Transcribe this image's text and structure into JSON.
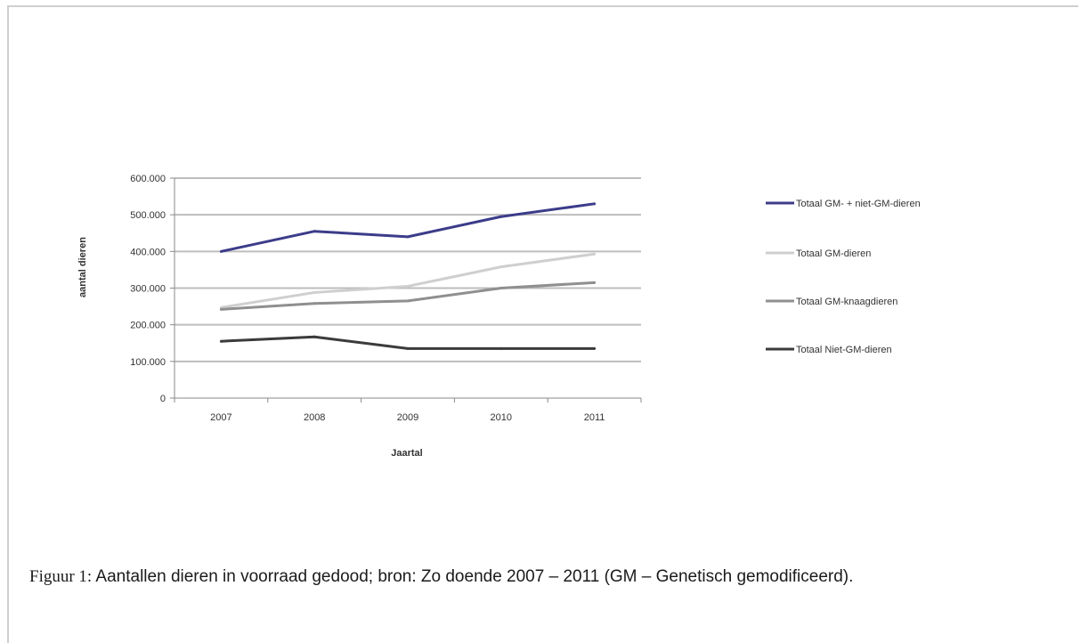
{
  "chart_data": {
    "type": "line",
    "categories": [
      "2007",
      "2008",
      "2009",
      "2010",
      "2011"
    ],
    "xlabel": "Jaartal",
    "ylabel": "aantal dieren",
    "ylim": [
      0,
      600000
    ],
    "yticks": [
      0,
      100000,
      200000,
      300000,
      400000,
      500000,
      600000
    ],
    "ytick_labels": [
      "0",
      "100.000",
      "200.000",
      "300.000",
      "400.000",
      "500.000",
      "600.000"
    ],
    "grid": true,
    "legend": "right",
    "series": [
      {
        "name": "Totaal GM- + niet-GM-dieren",
        "color": "#3c3c8a",
        "values": [
          400000,
          455000,
          440000,
          495000,
          530000
        ]
      },
      {
        "name": "Totaal GM-dieren",
        "color": "#cfcfcf",
        "values": [
          247000,
          288000,
          305000,
          358000,
          393000
        ]
      },
      {
        "name": "Totaal GM-knaagdieren",
        "color": "#8f8f8f",
        "values": [
          242000,
          258000,
          265000,
          300000,
          315000
        ]
      },
      {
        "name": "Totaal Niet-GM-dieren",
        "color": "#3b3b3b",
        "values": [
          155000,
          167000,
          135000,
          135000,
          135000
        ]
      }
    ]
  },
  "caption": {
    "lead": "Figuur 1:",
    "text": " Aantallen dieren in voorraad gedood; bron: Zo doende 2007 – 2011 (GM – Genetisch gemodificeerd)."
  }
}
